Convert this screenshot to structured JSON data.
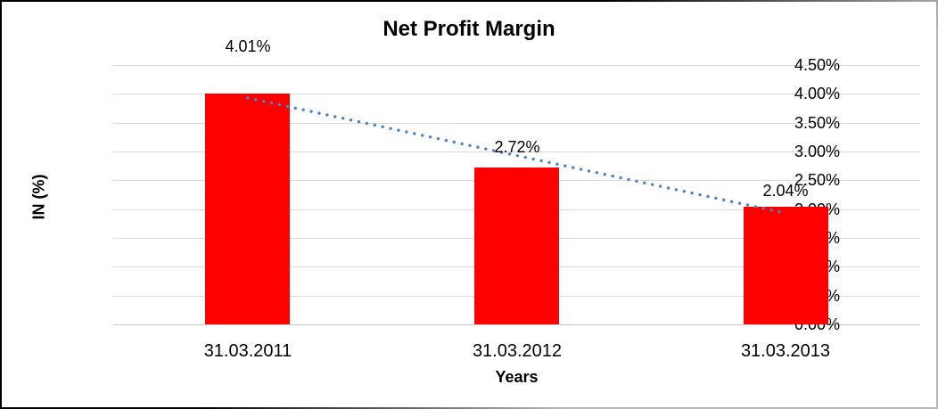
{
  "chart_data": {
    "type": "bar",
    "title": "Net Profit Margin",
    "xlabel": "Years",
    "ylabel": "IN (%)",
    "categories": [
      "31.03.2011",
      "31.03.2012",
      "31.03.2013"
    ],
    "values": [
      4.01,
      2.72,
      2.04
    ],
    "data_labels": [
      "4.01%",
      "2.72%",
      "2.04%"
    ],
    "unit": "%",
    "ylim": [
      0,
      4.5
    ],
    "ytick_step": 0.5,
    "ytick_labels": [
      "0.00%",
      "0.50%",
      "1.00%",
      "1.50%",
      "2.00%",
      "2.50%",
      "3.00%",
      "3.50%",
      "4.00%",
      "4.50%"
    ],
    "grid": true,
    "legend": "none",
    "bar_color": "#ff0000",
    "trendline": {
      "style": "dotted",
      "color": "#4a85c6",
      "start_value": 3.93,
      "end_value": 1.93
    }
  }
}
